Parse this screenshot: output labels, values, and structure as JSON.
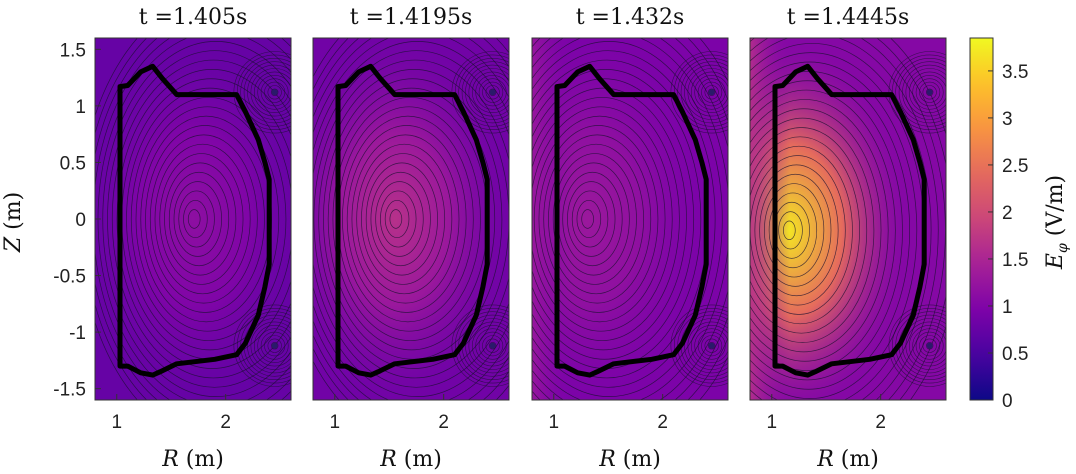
{
  "chart_data": {
    "type": "heatmap",
    "panels": [
      {
        "title": "t =1.405s",
        "field": {
          "peak_R": 1.7,
          "peak_Z": 0.0,
          "peak_value": 1.15,
          "edge_value": 0.75,
          "left_band": 0.0
        }
      },
      {
        "title": "t =1.4195s",
        "field": {
          "peak_R": 1.55,
          "peak_Z": 0.0,
          "peak_value": 1.65,
          "edge_value": 0.85,
          "left_band": 0.0
        }
      },
      {
        "title": "t =1.432s",
        "field": {
          "peak_R": 1.3,
          "peak_Z": 0.0,
          "peak_value": 1.3,
          "edge_value": 0.95,
          "left_band": 0.35
        }
      },
      {
        "title": "t =1.4445s",
        "field": {
          "peak_R": 1.15,
          "peak_Z": -0.1,
          "peak_value": 3.7,
          "edge_value": 1.05,
          "left_band": 0.6
        }
      }
    ],
    "xlabel": "R (m)",
    "ylabel": "Z (m)",
    "colorbar_label": "E_φ (V/m)",
    "xlim": [
      0.8,
      2.6
    ],
    "ylim": [
      -1.6,
      1.6
    ],
    "x_ticks": [
      "1",
      "2"
    ],
    "y_ticks": [
      "1.5",
      "1",
      "0.5",
      "0",
      "-0.5",
      "-1",
      "-1.5"
    ],
    "colorbar_ticks": [
      "0",
      "0.5",
      "1",
      "1.5",
      "2",
      "2.5",
      "3",
      "3.5"
    ],
    "colorbar_range": [
      0,
      3.85
    ],
    "colormap": "plasma",
    "grid": false,
    "vessel_outline": [
      [
        1.03,
        1.17
      ],
      [
        1.1,
        1.18
      ],
      [
        1.22,
        1.3
      ],
      [
        1.33,
        1.35
      ],
      [
        1.42,
        1.24
      ],
      [
        1.55,
        1.1
      ],
      [
        2.1,
        1.1
      ],
      [
        2.18,
        0.95
      ],
      [
        2.3,
        0.7
      ],
      [
        2.36,
        0.5
      ],
      [
        2.4,
        0.35
      ],
      [
        2.4,
        -0.4
      ],
      [
        2.36,
        -0.6
      ],
      [
        2.3,
        -0.85
      ],
      [
        2.18,
        -1.1
      ],
      [
        2.1,
        -1.2
      ],
      [
        1.9,
        -1.24
      ],
      [
        1.55,
        -1.28
      ],
      [
        1.4,
        -1.35
      ],
      [
        1.33,
        -1.38
      ],
      [
        1.22,
        -1.36
      ],
      [
        1.1,
        -1.3
      ],
      [
        1.03,
        -1.3
      ]
    ],
    "coils": [
      [
        2.45,
        1.12
      ],
      [
        2.45,
        -1.12
      ]
    ]
  }
}
